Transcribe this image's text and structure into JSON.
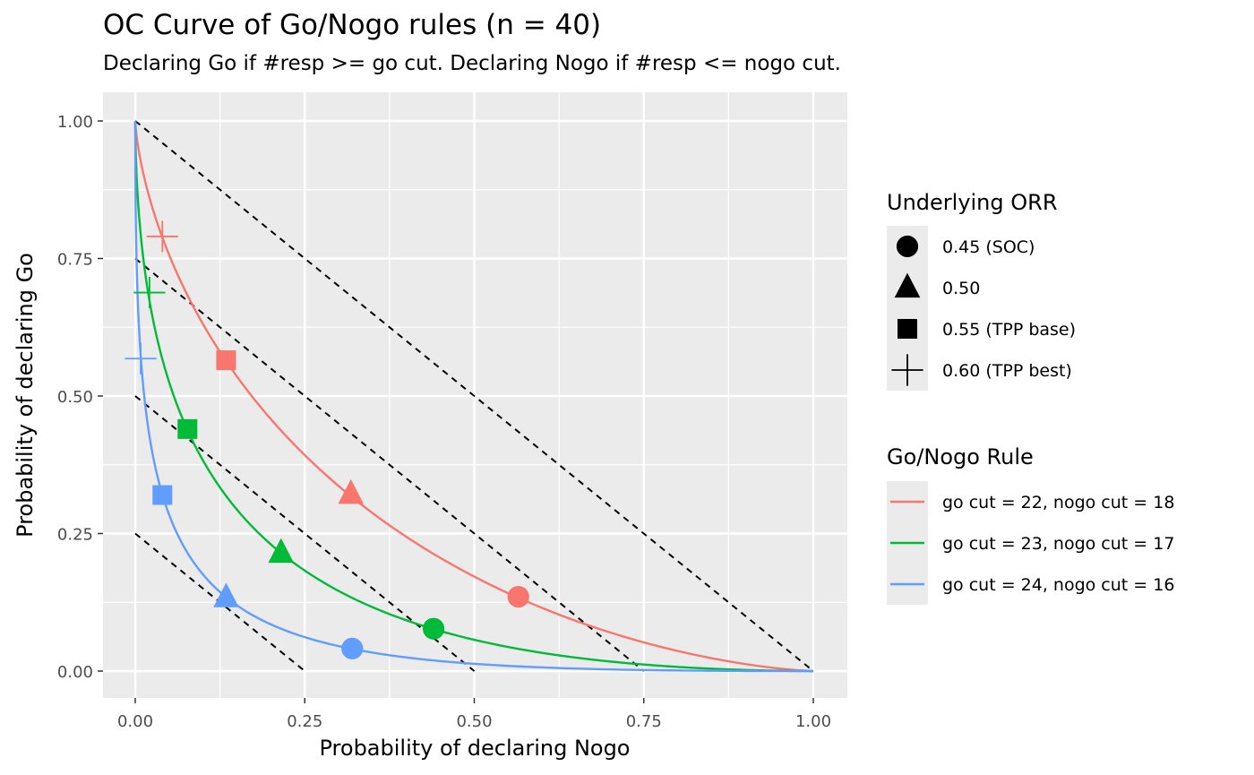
{
  "chart_data": {
    "type": "line",
    "title": "OC Curve of Go/Nogo rules (n = 40)",
    "subtitle": "Declaring Go if #resp >= go cut. Declaring Nogo if #resp <= nogo cut.",
    "xlabel": "Probability of declaring Nogo",
    "ylabel": "Probability of declaring Go",
    "xlim": [
      -0.05,
      1.05
    ],
    "ylim": [
      -0.05,
      1.05
    ],
    "x_ticks": [
      0.0,
      0.25,
      0.5,
      0.75,
      1.0
    ],
    "x_tick_labels": [
      "0.00",
      "0.25",
      "0.50",
      "0.75",
      "1.00"
    ],
    "y_ticks": [
      0.0,
      0.25,
      0.5,
      0.75,
      1.0
    ],
    "y_tick_labels": [
      "0.00",
      "0.25",
      "0.50",
      "0.75",
      "1.00"
    ],
    "grid": true,
    "reference_lines": [
      {
        "intercept": 1.0,
        "slope": -1
      },
      {
        "intercept": 0.75,
        "slope": -1
      },
      {
        "intercept": 0.5,
        "slope": -1
      },
      {
        "intercept": 0.25,
        "slope": -1
      }
    ],
    "n": 40,
    "series": [
      {
        "name": "go cut = 22, nogo cut = 18",
        "go": 22,
        "nogo": 18,
        "color": "#F8766D",
        "points": [
          {
            "orr": "0.45 (SOC)",
            "shape": "circle",
            "x": 0.565,
            "y": 0.135
          },
          {
            "orr": "0.50",
            "shape": "triangle",
            "x": 0.318,
            "y": 0.322
          },
          {
            "orr": "0.55 (TPP base)",
            "shape": "square",
            "x": 0.134,
            "y": 0.565
          },
          {
            "orr": "0.60 (TPP best)",
            "shape": "plus",
            "x": 0.04,
            "y": 0.79
          }
        ]
      },
      {
        "name": "go cut = 23, nogo cut = 17",
        "go": 23,
        "nogo": 17,
        "color": "#00BA38",
        "points": [
          {
            "orr": "0.45 (SOC)",
            "shape": "circle",
            "x": 0.44,
            "y": 0.077
          },
          {
            "orr": "0.50",
            "shape": "triangle",
            "x": 0.215,
            "y": 0.215
          },
          {
            "orr": "0.55 (TPP base)",
            "shape": "square",
            "x": 0.077,
            "y": 0.44
          },
          {
            "orr": "0.60 (TPP best)",
            "shape": "plus",
            "x": 0.021,
            "y": 0.688
          }
        ]
      },
      {
        "name": "go cut = 24, nogo cut = 16",
        "go": 24,
        "nogo": 16,
        "color": "#619CFF",
        "points": [
          {
            "orr": "0.45 (SOC)",
            "shape": "circle",
            "x": 0.32,
            "y": 0.041
          },
          {
            "orr": "0.50",
            "shape": "triangle",
            "x": 0.134,
            "y": 0.134
          },
          {
            "orr": "0.55 (TPP base)",
            "shape": "square",
            "x": 0.04,
            "y": 0.32
          },
          {
            "orr": "0.60 (TPP best)",
            "shape": "plus",
            "x": 0.008,
            "y": 0.568
          }
        ]
      }
    ],
    "legend_shape": {
      "title": "Underlying ORR",
      "entries": [
        {
          "label": "0.45 (SOC)",
          "shape": "circle"
        },
        {
          "label": "0.50",
          "shape": "triangle"
        },
        {
          "label": "0.55 (TPP base)",
          "shape": "square"
        },
        {
          "label": "0.60 (TPP best)",
          "shape": "plus"
        }
      ]
    },
    "legend_rule": {
      "title": "Go/Nogo Rule",
      "entries": [
        {
          "label": "go cut = 22, nogo cut = 18",
          "color": "#F8766D"
        },
        {
          "label": "go cut = 23, nogo cut = 17",
          "color": "#00BA38"
        },
        {
          "label": "go cut = 24, nogo cut = 16",
          "color": "#619CFF"
        }
      ]
    },
    "legend_position": "right"
  }
}
